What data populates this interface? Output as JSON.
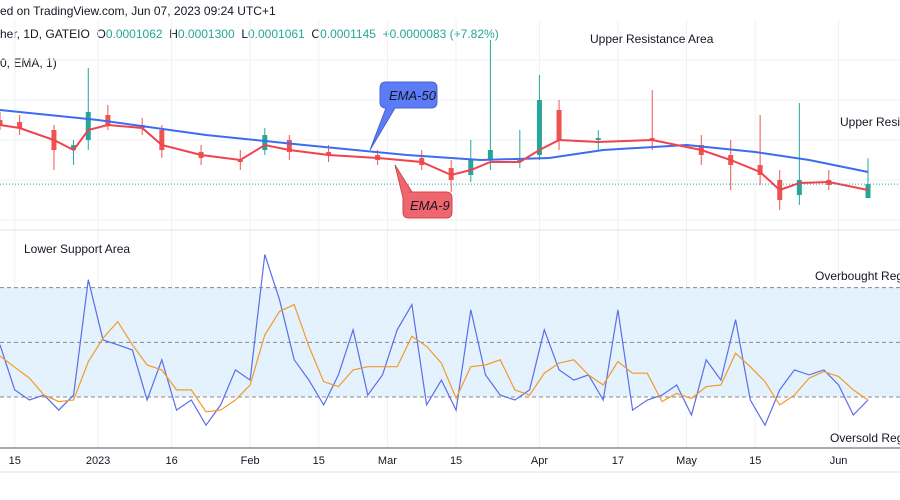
{
  "header": {
    "published": "ed on TradingView.com, Jun 07, 2023 09:24 UTC+1",
    "symbol": "her, 1D, GATEIO",
    "open_label": "O",
    "open": "0.0001062",
    "high_label": "H",
    "high": "0.0001300",
    "low_label": "L",
    "low": "0.0001061",
    "close_label": "C",
    "close": "0.0001145",
    "change": "+0.0000083 (+7.82%)",
    "indicator": "0, EMA, 1)"
  },
  "colors": {
    "up": "#26a69a",
    "down": "#ef5350",
    "ema50": "#3d6cf0",
    "ema9": "#f0424f",
    "rsi": "#5b6ee8",
    "rsi_signal": "#f39a2b",
    "band": "#e3f2fd"
  },
  "chart_data": [
    {
      "type": "candlestick",
      "xlim": [
        "2022-12-12",
        "2023-06-07"
      ],
      "ylim": [
        9e-05,
        0.000213
      ],
      "grid": true,
      "annotations": [
        "Upper Resistance Area",
        "Upper Resis",
        "Lower Support Area"
      ],
      "callouts": {
        "ema50": "EMA-50",
        "ema9": "EMA-9"
      },
      "candles": [
        [
          "2022-12-12",
          0.000153,
          0.0001578,
          0.000147,
          0.00015
        ],
        [
          "2022-12-16",
          0.0001518,
          0.000156,
          0.000144,
          0.0001482
        ],
        [
          "2022-12-23",
          0.000147,
          0.00015,
          0.000123,
          0.000135
        ],
        [
          "2022-12-27",
          0.000135,
          0.000141,
          0.000126,
          0.000138
        ],
        [
          "2022-12-30",
          0.000141,
          0.0001842,
          0.000135,
          0.0001578
        ],
        [
          "2023-01-03",
          0.000156,
          0.000162,
          0.000147,
          0.00015
        ],
        [
          "2023-01-10",
          0.00015,
          0.0001542,
          0.000144,
          0.0001482
        ],
        [
          "2023-01-14",
          0.000147,
          0.00015,
          0.0001302,
          0.000135
        ],
        [
          "2023-01-22",
          0.0001338,
          0.000138,
          0.000126,
          0.0001302
        ],
        [
          "2023-01-30",
          0.000129,
          0.000135,
          0.000123,
          0.0001278
        ],
        [
          "2023-02-04",
          0.000135,
          0.0001482,
          0.000132,
          0.000144
        ],
        [
          "2023-02-09",
          0.000141,
          0.000144,
          0.000129,
          0.0001338
        ],
        [
          "2023-02-17",
          0.0001338,
          0.000138,
          0.0001278,
          0.000132
        ],
        [
          "2023-02-27",
          0.000132,
          0.000135,
          0.000126,
          0.000129
        ],
        [
          "2023-03-08",
          0.0001302,
          0.000135,
          0.000123,
          0.000126
        ],
        [
          "2023-03-14",
          0.0001242,
          0.000129,
          0.0001098,
          0.000117
        ],
        [
          "2023-03-18",
          0.00012,
          0.000141,
          0.0001158,
          0.000129
        ],
        [
          "2023-03-22",
          0.000129,
          0.000201,
          0.000123,
          0.000135
        ],
        [
          "2023-03-28",
          0.000129,
          0.000147,
          0.0001242,
          0.000129
        ],
        [
          "2023-04-01",
          0.000132,
          0.00018,
          0.000129,
          0.000165
        ],
        [
          "2023-04-05",
          0.000159,
          0.000165,
          0.000135,
          0.000141
        ],
        [
          "2023-04-13",
          0.000141,
          0.000147,
          0.000135,
          0.0001422
        ],
        [
          "2023-04-24",
          0.0001422,
          0.000171,
          0.000135,
          0.000141
        ],
        [
          "2023-05-04",
          0.000138,
          0.000144,
          0.000126,
          0.000132
        ],
        [
          "2023-05-10",
          0.000132,
          0.000141,
          0.000111,
          0.000126
        ],
        [
          "2023-05-16",
          0.000126,
          0.000156,
          0.000114,
          0.00012
        ],
        [
          "2023-05-20",
          0.000117,
          0.000123,
          9.9e-05,
          0.000105
        ],
        [
          "2023-05-24",
          0.000108,
          0.0001632,
          0.000102,
          0.000117
        ],
        [
          "2023-05-30",
          0.000117,
          0.000123,
          0.000111,
          0.000114
        ],
        [
          "2023-06-07",
          0.0001062,
          0.00013,
          0.0001061,
          0.0001145
        ]
      ],
      "ema50": [
        [
          "2022-12-12",
          0.000159
        ],
        [
          "2023-01-01",
          0.000153
        ],
        [
          "2023-01-23",
          0.000144
        ],
        [
          "2023-02-12",
          0.000138
        ],
        [
          "2023-03-05",
          0.000132
        ],
        [
          "2023-03-20",
          0.000129
        ],
        [
          "2023-04-03",
          0.0001302
        ],
        [
          "2023-04-14",
          0.000135
        ],
        [
          "2023-05-01",
          0.000138
        ],
        [
          "2023-05-15",
          0.0001338
        ],
        [
          "2023-05-26",
          0.000129
        ],
        [
          "2023-06-07",
          0.0001218
        ]
      ],
      "ema9": [
        [
          "2022-12-12",
          0.00015
        ],
        [
          "2022-12-16",
          0.0001482
        ],
        [
          "2022-12-23",
          0.000141
        ],
        [
          "2022-12-27",
          0.000135
        ],
        [
          "2022-12-30",
          0.000147
        ],
        [
          "2023-01-03",
          0.00015
        ],
        [
          "2023-01-10",
          0.0001482
        ],
        [
          "2023-01-14",
          0.000138
        ],
        [
          "2023-01-22",
          0.000132
        ],
        [
          "2023-01-30",
          0.000129
        ],
        [
          "2023-02-04",
          0.000138
        ],
        [
          "2023-02-09",
          0.000135
        ],
        [
          "2023-02-17",
          0.000132
        ],
        [
          "2023-02-27",
          0.0001302
        ],
        [
          "2023-03-08",
          0.0001278
        ],
        [
          "2023-03-14",
          0.00012
        ],
        [
          "2023-03-18",
          0.000123
        ],
        [
          "2023-03-22",
          0.0001278
        ],
        [
          "2023-03-28",
          0.0001278
        ],
        [
          "2023-04-01",
          0.000135
        ],
        [
          "2023-04-05",
          0.000141
        ],
        [
          "2023-04-13",
          0.0001398
        ],
        [
          "2023-04-24",
          0.000141
        ],
        [
          "2023-05-04",
          0.000135
        ],
        [
          "2023-05-10",
          0.000129
        ],
        [
          "2023-05-16",
          0.0001218
        ],
        [
          "2023-05-20",
          0.000111
        ],
        [
          "2023-05-24",
          0.0001152
        ],
        [
          "2023-05-30",
          0.0001158
        ],
        [
          "2023-06-07",
          0.000111
        ]
      ],
      "last_price": 0.0001145
    },
    {
      "type": "line",
      "ylim": [
        15,
        90
      ],
      "levels": [
        70,
        50,
        30
      ],
      "annotations": [
        "Overbought Reg",
        "Oversold Reg"
      ],
      "dates": [
        "2022-12-12",
        "2022-12-15",
        "2022-12-18",
        "2022-12-21",
        "2022-12-24",
        "2022-12-27",
        "2022-12-30",
        "2023-01-02",
        "2023-01-05",
        "2023-01-08",
        "2023-01-11",
        "2023-01-14",
        "2023-01-17",
        "2023-01-20",
        "2023-01-23",
        "2023-01-26",
        "2023-01-29",
        "2023-02-01",
        "2023-02-04",
        "2023-02-07",
        "2023-02-10",
        "2023-02-13",
        "2023-02-16",
        "2023-02-19",
        "2023-02-22",
        "2023-02-25",
        "2023-02-28",
        "2023-03-03",
        "2023-03-06",
        "2023-03-09",
        "2023-03-12",
        "2023-03-15",
        "2023-03-18",
        "2023-03-21",
        "2023-03-24",
        "2023-03-27",
        "2023-03-30",
        "2023-04-02",
        "2023-04-05",
        "2023-04-08",
        "2023-04-11",
        "2023-04-14",
        "2023-04-17",
        "2023-04-20",
        "2023-04-23",
        "2023-04-26",
        "2023-04-29",
        "2023-05-02",
        "2023-05-05",
        "2023-05-08",
        "2023-05-11",
        "2023-05-14",
        "2023-05-17",
        "2023-05-20",
        "2023-05-23",
        "2023-05-26",
        "2023-05-29",
        "2023-06-01",
        "2023-06-04",
        "2023-06-07"
      ],
      "series": [
        {
          "values": [
            49.1,
            32.6,
            28.9,
            30.7,
            25.2,
            30.7,
            72.9,
            50.9,
            49.1,
            47.2,
            28.9,
            43.6,
            25.2,
            28.9,
            19.7,
            27.1,
            39.9,
            36.2,
            82.1,
            65.6,
            43.6,
            36.2,
            27.1,
            38.1,
            54.6,
            30.7,
            38.1,
            54.6,
            63.8,
            27.1,
            36.2,
            25.2,
            61.9,
            38.1,
            30.7,
            28.9,
            32.6,
            54.6,
            39.9,
            36.2,
            38.1,
            28.9,
            61.9,
            25.2,
            28.9,
            30.7,
            34.4,
            23.4,
            43.6,
            36.2,
            58.3,
            28.9,
            19.7,
            32.6,
            39.9,
            38.1,
            39.9,
            34.4,
            23.4,
            28.9
          ]
        },
        {
          "values": [
            45,
            40.9,
            36.9,
            30.7,
            28.3,
            28.9,
            42.9,
            51.5,
            57.6,
            49.1,
            41.7,
            39.9,
            32.6,
            32.6,
            24.6,
            25.2,
            28.9,
            34.4,
            52.7,
            61.3,
            63.8,
            48.5,
            35.6,
            33.8,
            39.9,
            41.1,
            41.1,
            41.1,
            52.2,
            48.5,
            42.4,
            29.5,
            41.1,
            41.7,
            43.6,
            32.6,
            30.7,
            38.7,
            42.4,
            43.6,
            38.1,
            34.4,
            43.0,
            38.7,
            38.7,
            28.3,
            31.3,
            29.5,
            33.8,
            34.4,
            46.0,
            41.1,
            35.6,
            27.1,
            30.7,
            36.9,
            39.3,
            37.5,
            32.6,
            28.9
          ]
        }
      ]
    }
  ],
  "x_axis": {
    "ticks": [
      [
        "2022-12-15",
        "15"
      ],
      [
        "2023-01-01",
        "2023"
      ],
      [
        "2023-01-16",
        "16"
      ],
      [
        "2023-02-01",
        "Feb"
      ],
      [
        "2023-02-15",
        "15"
      ],
      [
        "2023-03-01",
        "Mar"
      ],
      [
        "2023-03-15",
        "15"
      ],
      [
        "2023-04-01",
        "Apr"
      ],
      [
        "2023-04-17",
        "17"
      ],
      [
        "2023-05-01",
        "May"
      ],
      [
        "2023-05-15",
        "15"
      ],
      [
        "2023-06-01",
        "Jun"
      ]
    ]
  }
}
